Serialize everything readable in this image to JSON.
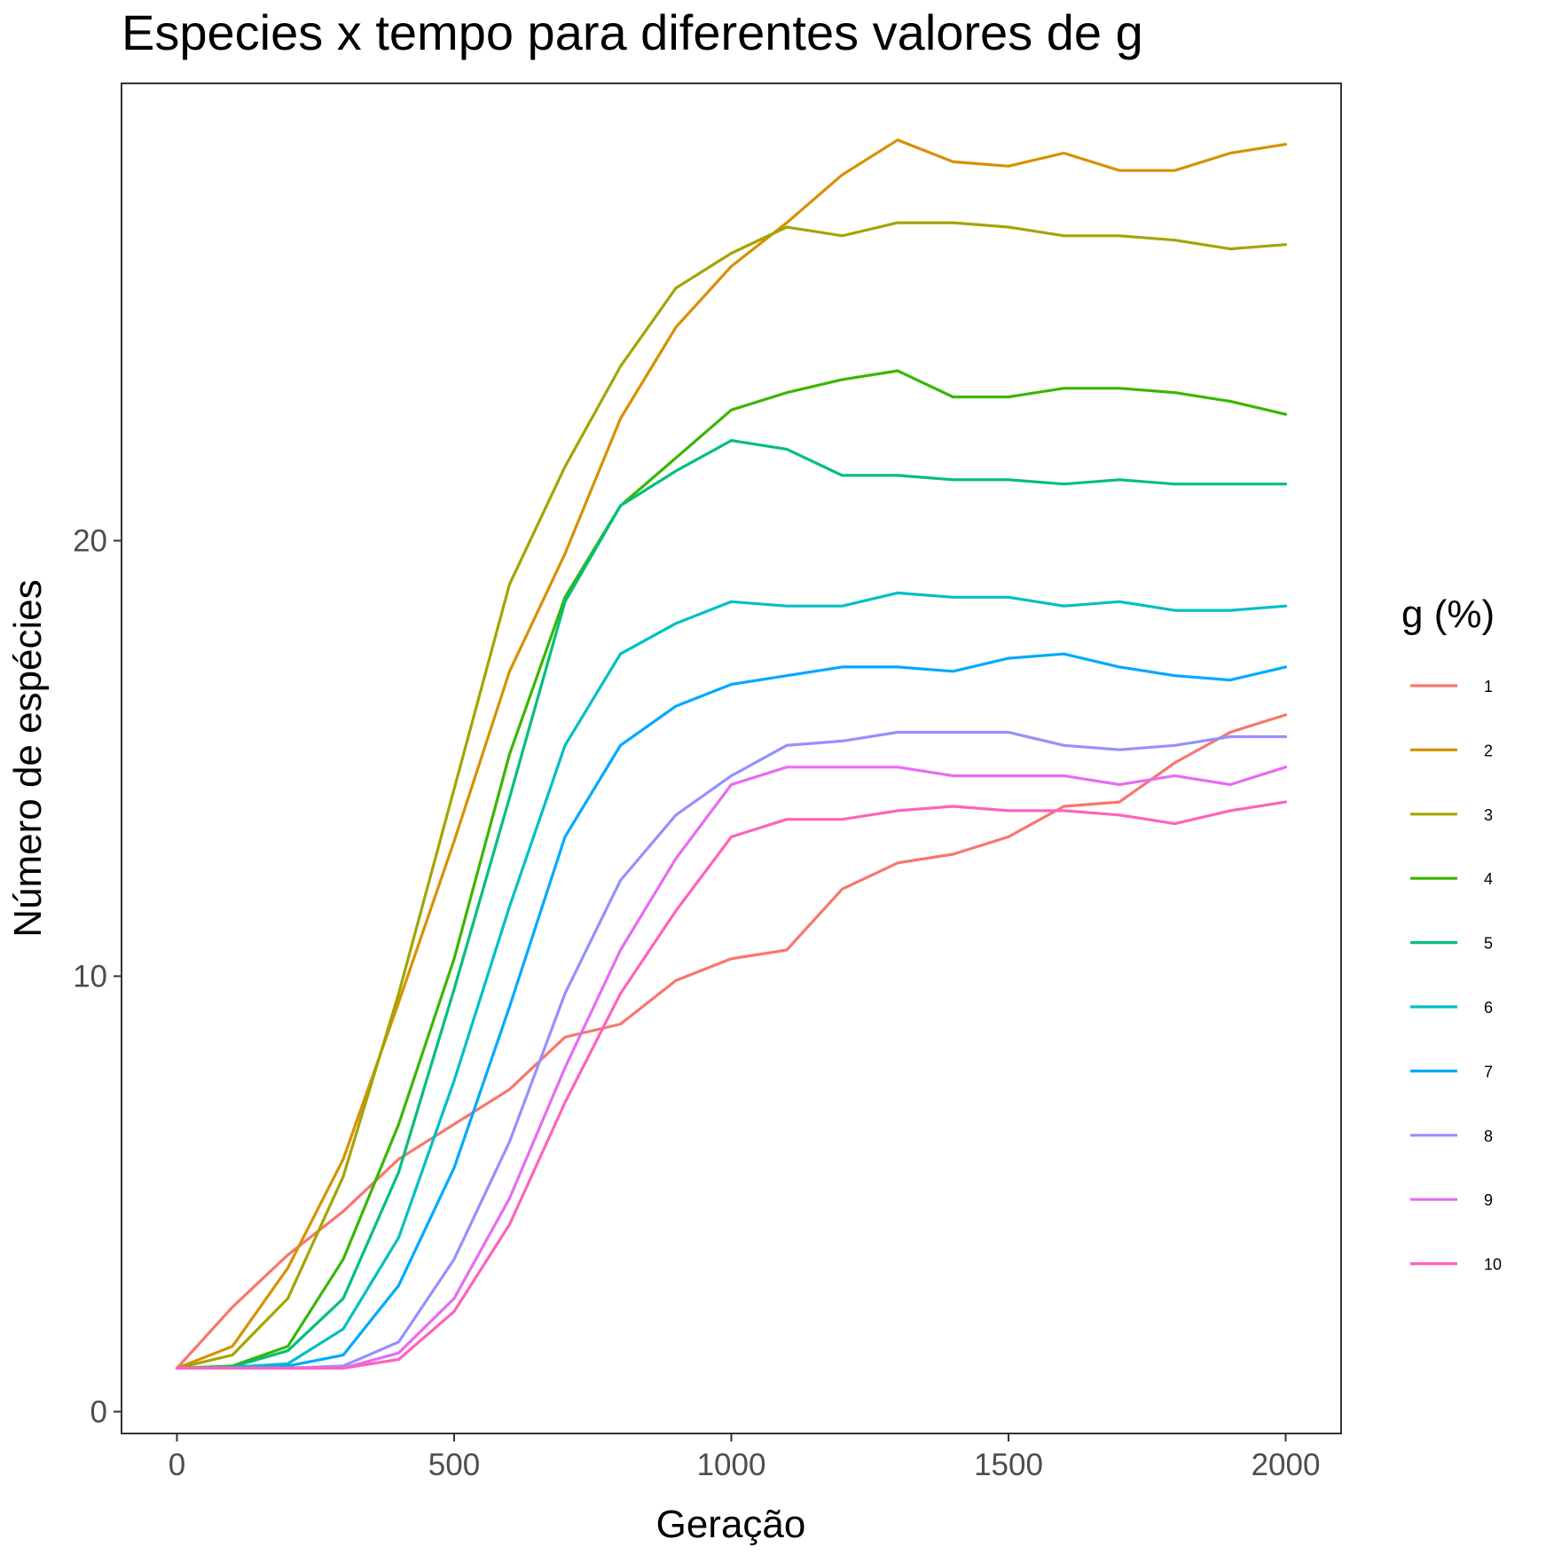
{
  "chart_data": {
    "type": "line",
    "title": "Especies x tempo para diferentes valores de g",
    "xlabel": "Geração",
    "ylabel": "Número de espécies",
    "xlim": [
      -100,
      2100
    ],
    "ylim": [
      -0.5,
      30.5
    ],
    "x_ticks": [
      0,
      500,
      1000,
      1500,
      2000
    ],
    "x_tick_labels": [
      "0",
      "500",
      "1000",
      "1500",
      "2000"
    ],
    "y_ticks": [
      0,
      10,
      20
    ],
    "y_tick_labels": [
      "0",
      "10",
      "20"
    ],
    "grid": false,
    "legend": {
      "title": "g (%)",
      "position": "right"
    },
    "x": [
      0,
      100,
      200,
      300,
      400,
      500,
      600,
      700,
      800,
      900,
      1000,
      1100,
      1200,
      1300,
      1400,
      1500,
      1600,
      1700,
      1800,
      1900,
      2000
    ],
    "series": [
      {
        "name": "1",
        "color": "#F8766D",
        "values": [
          1.0,
          2.4,
          3.6,
          4.6,
          5.8,
          6.6,
          7.4,
          8.6,
          8.9,
          9.9,
          10.4,
          10.6,
          12.0,
          12.6,
          12.8,
          13.2,
          13.9,
          14.0,
          14.9,
          15.6,
          16.0
        ]
      },
      {
        "name": "2",
        "color": "#D89000",
        "values": [
          1.0,
          1.5,
          3.3,
          5.8,
          9.4,
          13.1,
          17.0,
          19.7,
          22.8,
          24.9,
          26.3,
          27.3,
          28.4,
          29.2,
          28.7,
          28.6,
          28.9,
          28.5,
          28.5,
          28.9,
          29.1
        ]
      },
      {
        "name": "3",
        "color": "#A3A500",
        "values": [
          1.0,
          1.3,
          2.6,
          5.4,
          9.6,
          14.3,
          19.0,
          21.7,
          24.0,
          25.8,
          26.6,
          27.2,
          27.0,
          27.3,
          27.3,
          27.2,
          27.0,
          27.0,
          26.9,
          26.7,
          26.8
        ]
      },
      {
        "name": "4",
        "color": "#39B600",
        "values": [
          1.0,
          1.05,
          1.5,
          3.5,
          6.6,
          10.4,
          15.1,
          18.7,
          20.8,
          21.9,
          23.0,
          23.4,
          23.7,
          23.9,
          23.3,
          23.3,
          23.5,
          23.5,
          23.4,
          23.2,
          22.9
        ]
      },
      {
        "name": "5",
        "color": "#00BF7D",
        "values": [
          1.0,
          1.03,
          1.4,
          2.6,
          5.5,
          9.7,
          14.1,
          18.6,
          20.8,
          21.6,
          22.3,
          22.1,
          21.5,
          21.5,
          21.4,
          21.4,
          21.3,
          21.4,
          21.3,
          21.3,
          21.3
        ]
      },
      {
        "name": "6",
        "color": "#00BFC4",
        "values": [
          1.0,
          1.02,
          1.1,
          1.9,
          4.0,
          7.6,
          11.6,
          15.3,
          17.4,
          18.1,
          18.6,
          18.5,
          18.5,
          18.8,
          18.7,
          18.7,
          18.5,
          18.6,
          18.4,
          18.4,
          18.5
        ]
      },
      {
        "name": "7",
        "color": "#00A9FF",
        "values": [
          1.0,
          1.0,
          1.05,
          1.3,
          2.9,
          5.6,
          9.3,
          13.2,
          15.3,
          16.2,
          16.7,
          16.9,
          17.1,
          17.1,
          17.0,
          17.3,
          17.4,
          17.1,
          16.9,
          16.8,
          17.1
        ]
      },
      {
        "name": "8",
        "color": "#9590FF",
        "values": [
          1.0,
          1.0,
          1.0,
          1.05,
          1.6,
          3.5,
          6.2,
          9.6,
          12.2,
          13.7,
          14.6,
          15.3,
          15.4,
          15.6,
          15.6,
          15.6,
          15.3,
          15.2,
          15.3,
          15.5,
          15.5
        ]
      },
      {
        "name": "9",
        "color": "#E76BF3",
        "values": [
          1.0,
          1.0,
          1.0,
          1.0,
          1.35,
          2.6,
          4.9,
          7.9,
          10.6,
          12.7,
          14.4,
          14.8,
          14.8,
          14.8,
          14.6,
          14.6,
          14.6,
          14.4,
          14.6,
          14.4,
          14.8
        ]
      },
      {
        "name": "10",
        "color": "#FF62BC",
        "values": [
          1.0,
          1.0,
          1.0,
          1.0,
          1.2,
          2.3,
          4.3,
          7.1,
          9.6,
          11.5,
          13.2,
          13.6,
          13.6,
          13.8,
          13.9,
          13.8,
          13.8,
          13.7,
          13.5,
          13.8,
          14.0
        ]
      }
    ]
  }
}
